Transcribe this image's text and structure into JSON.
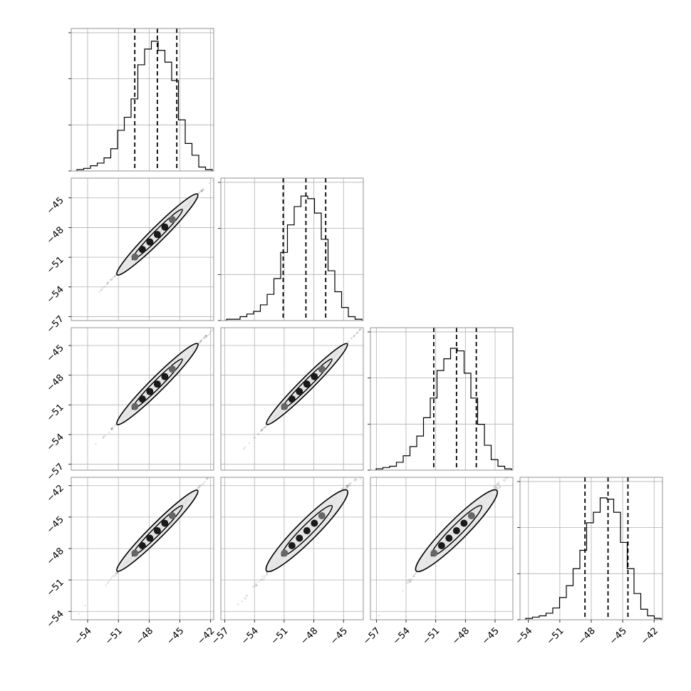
{
  "chart_data": {
    "type": "corner",
    "parameters": 4,
    "grid": true,
    "colors": {
      "line": "#000000",
      "grid": "#b0b0b0",
      "frame": "#777777",
      "fill": "#e6e6e6"
    },
    "axes": [
      {
        "range": [
          -55.6,
          -41.7
        ],
        "ticks": [
          -54,
          -51,
          -48,
          -45,
          -42
        ],
        "tick_labels": [
          "−54",
          "−51",
          "−48",
          "−45",
          "−42"
        ]
      },
      {
        "range": [
          -57.4,
          -43.0
        ],
        "ticks": [
          -57,
          -54,
          -51,
          -48,
          -45
        ],
        "tick_labels": [
          "−57",
          "−54",
          "−51",
          "−48",
          "−45"
        ]
      },
      {
        "range": [
          -57.6,
          -43.2
        ],
        "ticks": [
          -57,
          -54,
          -51,
          -48,
          -45
        ],
        "tick_labels": [
          "−57",
          "−54",
          "−51",
          "−48",
          "−45"
        ]
      },
      {
        "range": [
          -54.8,
          -41.2
        ],
        "ticks": [
          -54,
          -51,
          -48,
          -45,
          -42
        ],
        "tick_labels": [
          "−54",
          "−51",
          "−48",
          "−45",
          "−42"
        ]
      }
    ],
    "histograms": [
      {
        "param": 0,
        "heights": [
          0.01,
          0.02,
          0.04,
          0.06,
          0.1,
          0.17,
          0.31,
          0.41,
          0.55,
          0.81,
          0.93,
          0.99,
          0.92,
          0.83,
          0.69,
          0.39,
          0.21,
          0.12,
          0.03,
          0.01
        ],
        "quantiles": [
          -49.4,
          -47.2,
          -45.3
        ]
      },
      {
        "param": 1,
        "heights": [
          0.01,
          0.01,
          0.03,
          0.05,
          0.07,
          0.12,
          0.2,
          0.32,
          0.52,
          0.73,
          0.87,
          0.95,
          0.93,
          0.82,
          0.62,
          0.38,
          0.22,
          0.1,
          0.03,
          0.01
        ],
        "quantiles": [
          -51.1,
          -48.8,
          -46.8
        ]
      },
      {
        "param": 2,
        "heights": [
          0.01,
          0.02,
          0.03,
          0.06,
          0.11,
          0.18,
          0.26,
          0.4,
          0.55,
          0.76,
          0.85,
          0.93,
          0.91,
          0.74,
          0.55,
          0.35,
          0.19,
          0.08,
          0.03,
          0.01
        ],
        "quantiles": [
          -51.2,
          -48.9,
          -46.9
        ]
      },
      {
        "param": 3,
        "heights": [
          0.01,
          0.02,
          0.03,
          0.05,
          0.09,
          0.17,
          0.26,
          0.39,
          0.53,
          0.74,
          0.82,
          0.93,
          0.92,
          0.82,
          0.59,
          0.39,
          0.2,
          0.08,
          0.03,
          0.01
        ],
        "quantiles": [
          -48.6,
          -46.4,
          -44.5
        ]
      }
    ],
    "scatter_panels": [
      {
        "row": 1,
        "col": 0,
        "center": [
          -47.2,
          -48.7
        ],
        "corr": 0.995
      },
      {
        "row": 2,
        "col": 0,
        "center": [
          -47.2,
          -48.9
        ],
        "corr": 0.995
      },
      {
        "row": 2,
        "col": 1,
        "center": [
          -48.7,
          -48.9
        ],
        "corr": 0.997
      },
      {
        "row": 3,
        "col": 0,
        "center": [
          -47.2,
          -46.3
        ],
        "corr": 0.995
      },
      {
        "row": 3,
        "col": 1,
        "center": [
          -48.7,
          -46.3
        ],
        "corr": 0.985
      },
      {
        "row": 3,
        "col": 2,
        "center": [
          -48.9,
          -46.3
        ],
        "corr": 0.985
      }
    ]
  }
}
